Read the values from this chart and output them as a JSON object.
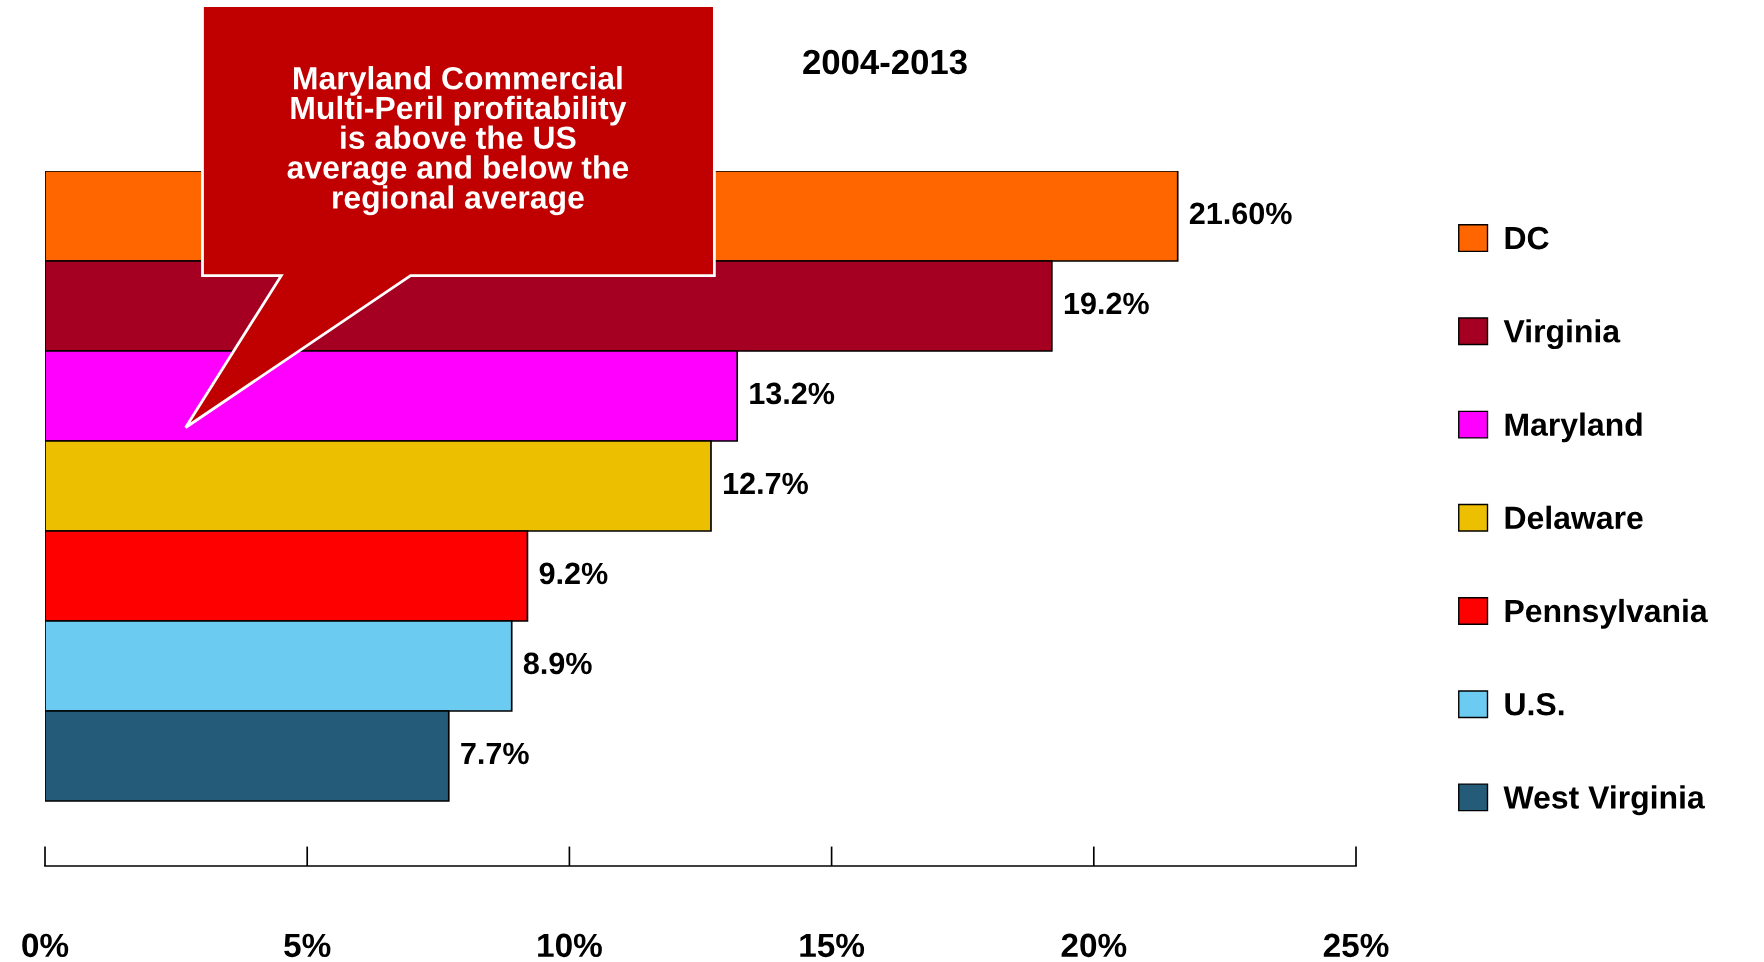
{
  "chart_data": {
    "type": "bar",
    "orientation": "horizontal",
    "title": "2004-2013",
    "categories": [
      null,
      null,
      null,
      null,
      null,
      null,
      null
    ],
    "series": [
      {
        "name": "DC",
        "color": "#ff6600",
        "values": [
          21.6,
          null,
          null,
          null,
          null,
          null,
          null
        ],
        "value_labels": [
          "21.60%",
          null,
          null,
          null,
          null,
          null,
          null
        ]
      },
      {
        "name": "Virginia",
        "color": "#a50021",
        "values": [
          null,
          19.2,
          null,
          null,
          null,
          null,
          null
        ],
        "value_labels": [
          null,
          "19.2%",
          null,
          null,
          null,
          null,
          null
        ]
      },
      {
        "name": "Maryland",
        "color": "#ff00ff",
        "values": [
          null,
          null,
          13.2,
          null,
          null,
          null,
          null
        ],
        "value_labels": [
          null,
          null,
          "13.2%",
          null,
          null,
          null,
          null
        ]
      },
      {
        "name": "Delaware",
        "color": "#ecc000",
        "values": [
          null,
          null,
          null,
          12.7,
          null,
          null,
          null
        ],
        "value_labels": [
          null,
          null,
          null,
          "12.7%",
          null,
          null,
          null
        ]
      },
      {
        "name": "Pennsylvania",
        "color": "#ff0000",
        "values": [
          null,
          null,
          null,
          null,
          9.2,
          null,
          null
        ],
        "value_labels": [
          null,
          null,
          null,
          null,
          "9.2%",
          null,
          null
        ]
      },
      {
        "name": "U.S.",
        "color": "#6ccbf0",
        "values": [
          null,
          null,
          null,
          null,
          null,
          8.9,
          null
        ],
        "value_labels": [
          null,
          null,
          null,
          null,
          null,
          "8.9%",
          null
        ]
      },
      {
        "name": "West Virginia",
        "color": "#235b78",
        "values": [
          null,
          null,
          null,
          null,
          null,
          null,
          7.7
        ],
        "value_labels": [
          null,
          null,
          null,
          null,
          null,
          null,
          "7.7%"
        ]
      }
    ],
    "xlim": [
      0,
      25
    ],
    "xticks": [
      {
        "value": 0,
        "label": "0%"
      },
      {
        "value": 5,
        "label": "5%"
      },
      {
        "value": 10,
        "label": "10%"
      },
      {
        "value": 15,
        "label": "15%"
      },
      {
        "value": 20,
        "label": "20%"
      },
      {
        "value": 25,
        "label": "25%"
      }
    ],
    "tick_labels": "x",
    "grid": false,
    "legend": "right",
    "stacked": true,
    "annotations": [
      "Maryland Commercial\nMulti-Peril profitability\nis above the US\naverage and below the\nregional average"
    ]
  }
}
